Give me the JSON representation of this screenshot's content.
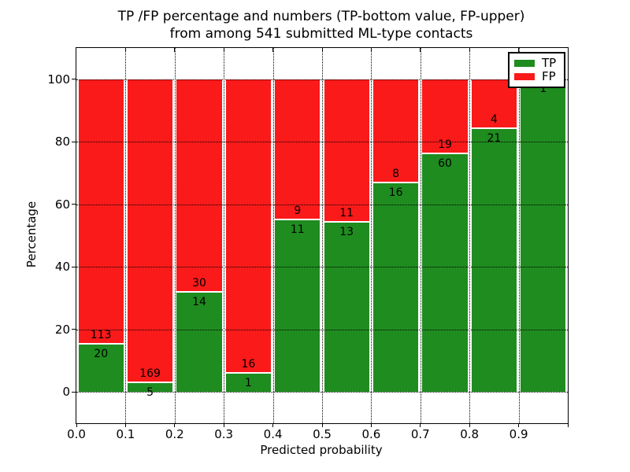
{
  "figure": {
    "title_line1": "TP /FP percentage and numbers (TP-bottom value, FP-upper)",
    "title_line2": "from among 541 submitted ML-type contacts",
    "x_label": "Predicted probability",
    "y_label": "Percentage"
  },
  "legend": {
    "items": [
      {
        "label": "TP",
        "color": "#1f8c1f"
      },
      {
        "label": "FP",
        "color": "#fa1a1a"
      }
    ]
  },
  "colors": {
    "tp_green": "#1f8c1f",
    "fp_red": "#fa1a1a",
    "grid": "#000000",
    "background": "#ffffff"
  },
  "chart_data": {
    "type": "bar",
    "stacked": true,
    "normalized": "each bin stacked to 100%",
    "title": "TP /FP percentage and numbers (TP-bottom value, FP-upper) from among 541 submitted ML-type contacts",
    "xlabel": "Predicted probability",
    "ylabel": "Percentage",
    "total_contacts": 541,
    "grid": true,
    "legend_position": "upper right",
    "xlim": [
      0.0,
      1.0
    ],
    "ylim": [
      -10,
      110
    ],
    "x_tick_labels": [
      "0.0",
      "0.1",
      "0.2",
      "0.3",
      "0.4",
      "0.5",
      "0.6",
      "0.7",
      "0.8",
      "0.9"
    ],
    "y_ticks": [
      0,
      20,
      40,
      60,
      80,
      100
    ],
    "bin_edges": [
      0.0,
      0.1,
      0.2,
      0.3,
      0.4,
      0.5,
      0.6,
      0.7,
      0.8,
      0.9,
      1.0
    ],
    "series": [
      {
        "name": "TP",
        "color": "#1f8c1f",
        "counts": [
          20,
          5,
          14,
          1,
          11,
          13,
          16,
          60,
          21,
          1
        ]
      },
      {
        "name": "FP",
        "color": "#fa1a1a",
        "counts": [
          113,
          169,
          30,
          16,
          9,
          11,
          8,
          19,
          4,
          0
        ]
      }
    ],
    "tp_pct_approx": [
      15.0,
      2.9,
      31.8,
      5.9,
      55.0,
      54.2,
      66.7,
      75.9,
      84.0,
      100.0
    ]
  }
}
